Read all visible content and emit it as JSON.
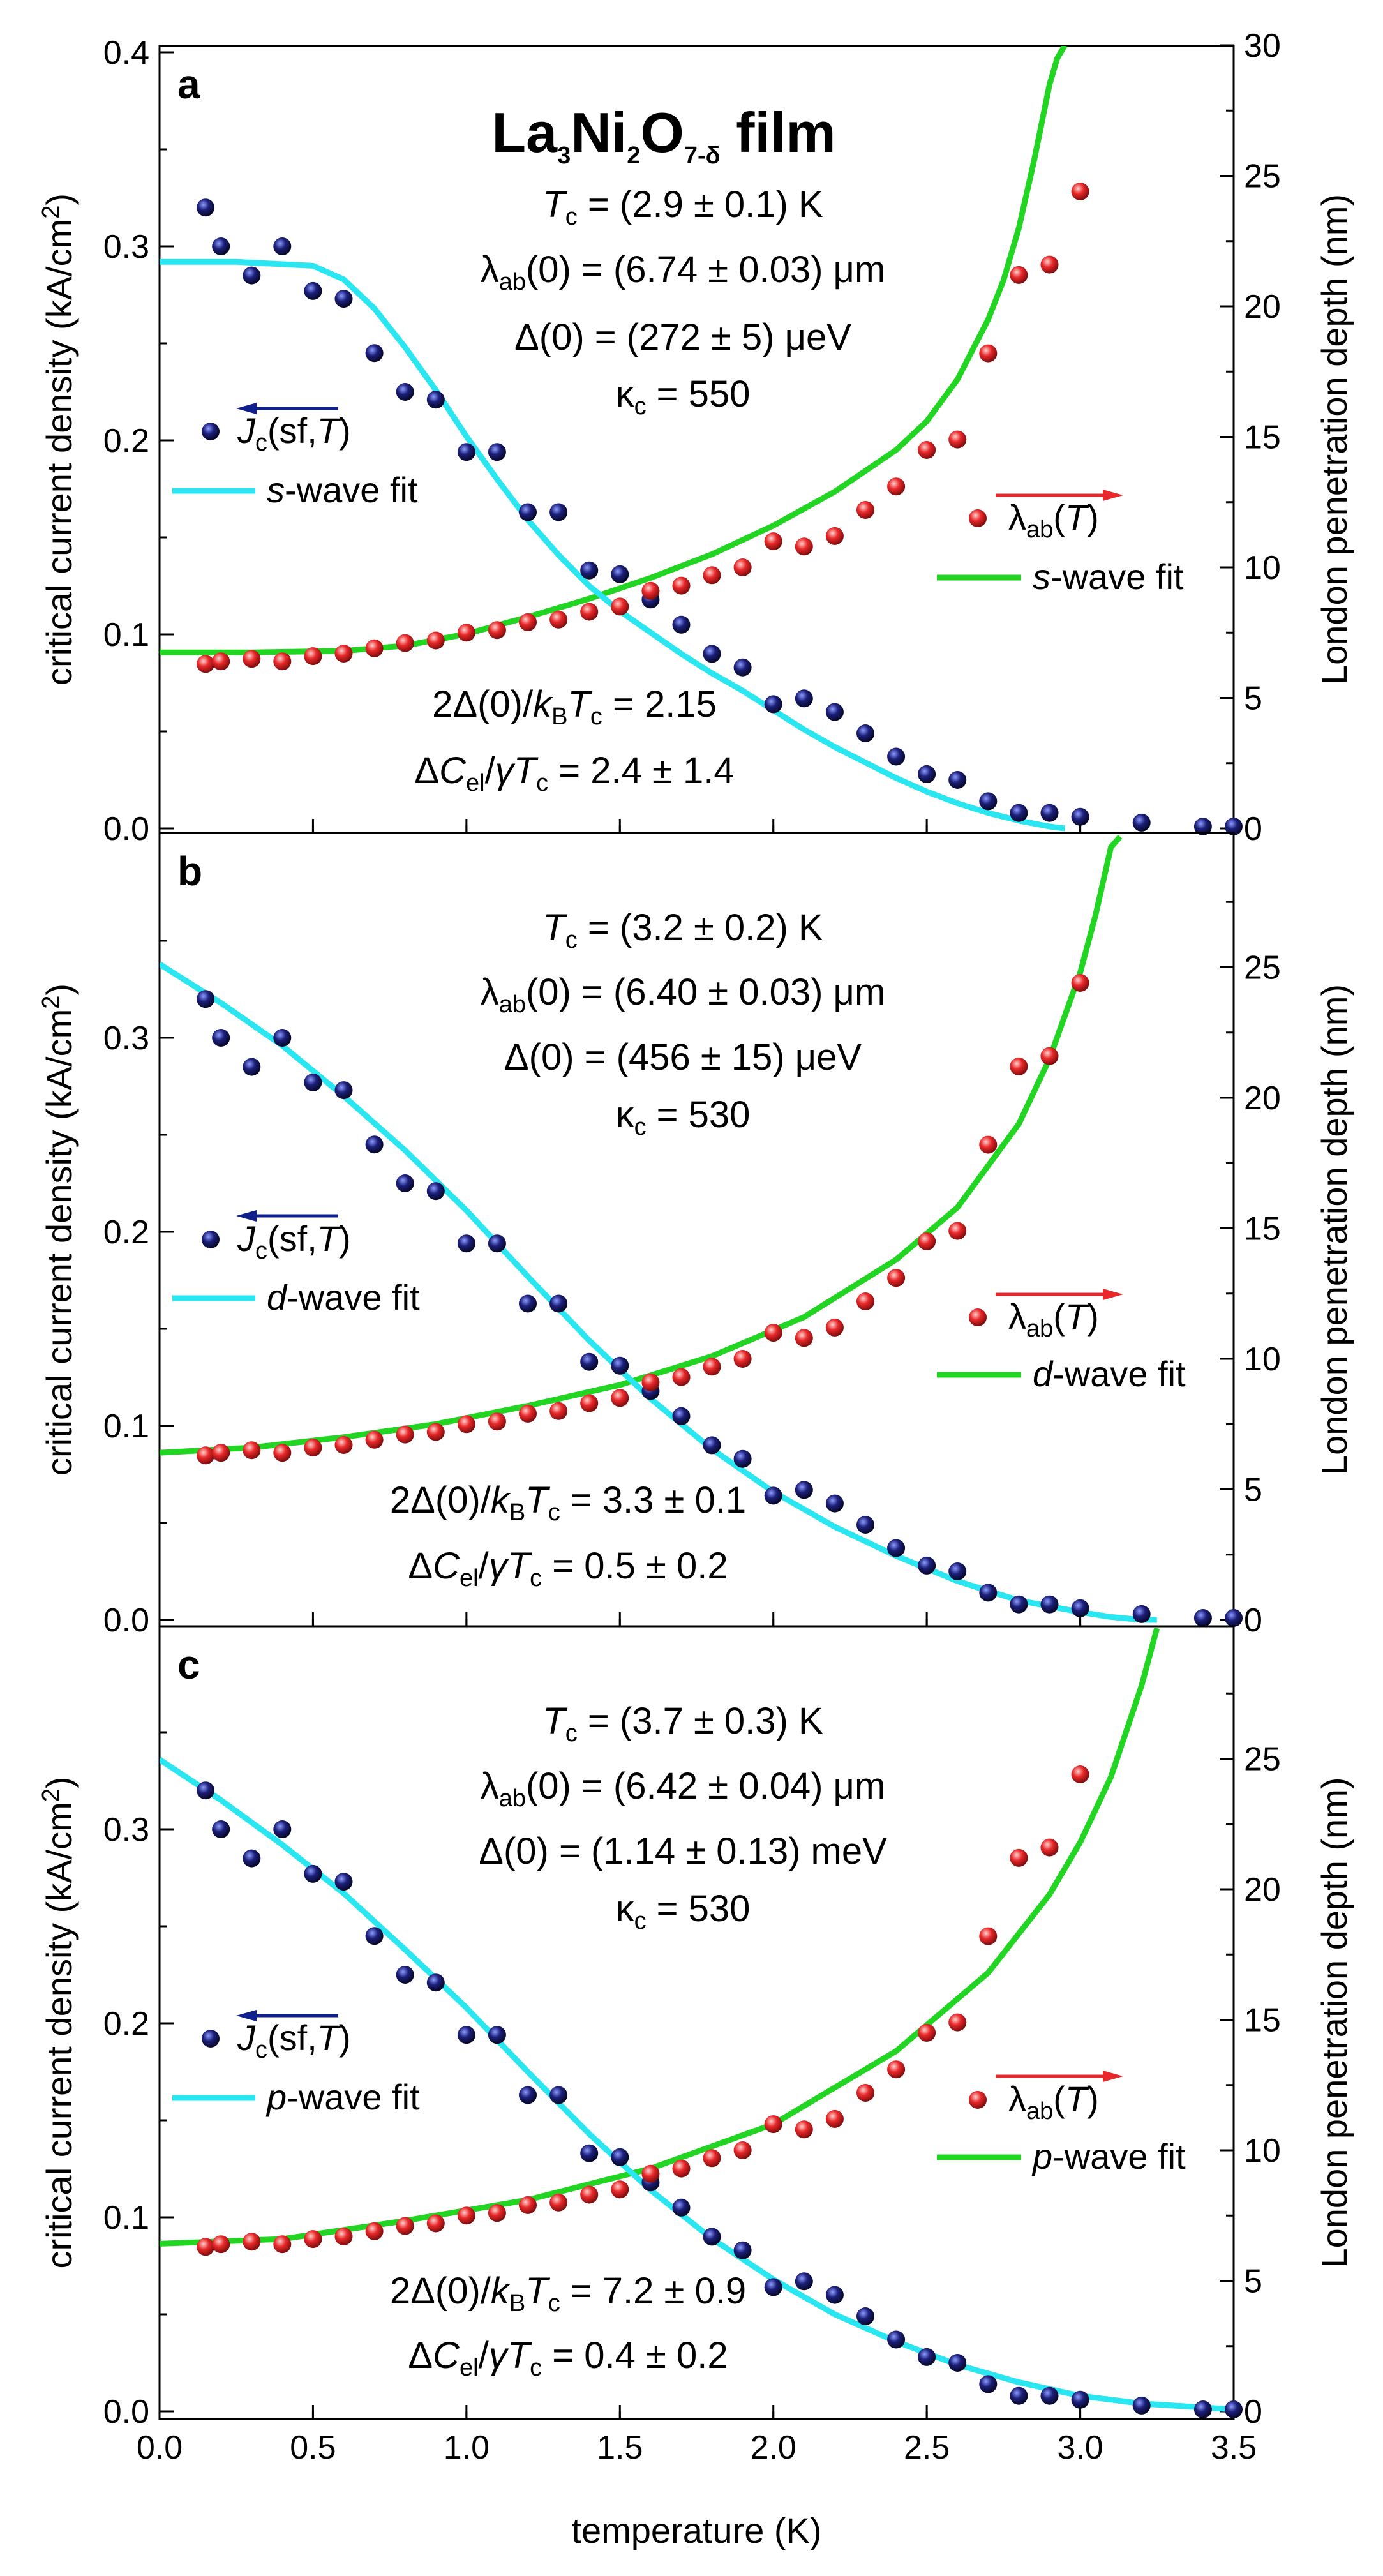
{
  "chart_data": {
    "type": "scatter",
    "title": "La3Ni2O7-δ film",
    "title_parts": {
      "main": "La",
      "s1": "3",
      "m2": "Ni",
      "s2": "2",
      "m3": "O",
      "s3": "7-δ",
      "tail": " film"
    },
    "xlabel": "temperature (K)",
    "xlim": [
      0.0,
      3.5
    ],
    "x_ticks": [
      "0.0",
      "0.5",
      "1.0",
      "1.5",
      "2.0",
      "2.5",
      "3.0",
      "3.5"
    ],
    "ylabel_left": "critical current density (kA/cm2)",
    "ylabel_left_parts": {
      "main": "critical current density (kA/cm",
      "sup": "2",
      "tail": ")"
    },
    "ylabel_right": "London penetration depth (nm)",
    "legend": {
      "jc_symbol": "J",
      "jc_sub": "c",
      "jc_tail": "(sf,",
      "t_symbol": "T",
      "close": ")",
      "lambda_symbol": "λ",
      "lambda_sub": "ab"
    },
    "measured": {
      "jc": {
        "name": "Jc(sf,T)",
        "color": "#1c1f7a",
        "x": [
          0.15,
          0.2,
          0.3,
          0.4,
          0.5,
          0.6,
          0.7,
          0.8,
          0.9,
          1.0,
          1.1,
          1.2,
          1.3,
          1.4,
          1.5,
          1.6,
          1.7,
          1.8,
          1.9,
          2.0,
          2.1,
          2.2,
          2.3,
          2.4,
          2.5,
          2.6,
          2.7,
          2.8,
          2.9,
          3.0,
          3.2,
          3.4,
          3.5
        ],
        "y": [
          0.32,
          0.3,
          0.285,
          0.3,
          0.277,
          0.273,
          0.245,
          0.225,
          0.221,
          0.194,
          0.194,
          0.163,
          0.163,
          0.133,
          0.131,
          0.118,
          0.105,
          0.09,
          0.083,
          0.064,
          0.067,
          0.06,
          0.049,
          0.037,
          0.028,
          0.025,
          0.014,
          0.008,
          0.008,
          0.006,
          0.003,
          0.001,
          0.001
        ]
      },
      "lambda": {
        "name": "λab(T)",
        "color": "#e8282a",
        "x": [
          0.15,
          0.2,
          0.3,
          0.4,
          0.5,
          0.6,
          0.7,
          0.8,
          0.9,
          1.0,
          1.1,
          1.2,
          1.3,
          1.4,
          1.5,
          1.6,
          1.7,
          1.8,
          1.9,
          2.0,
          2.1,
          2.2,
          2.3,
          2.4,
          2.5,
          2.6,
          2.7,
          2.8,
          2.9,
          3.0
        ],
        "y": [
          6.3,
          6.4,
          6.5,
          6.4,
          6.6,
          6.7,
          6.9,
          7.1,
          7.2,
          7.5,
          7.6,
          7.9,
          8.0,
          8.3,
          8.5,
          9.1,
          9.3,
          9.7,
          10.0,
          11.0,
          10.8,
          11.2,
          12.2,
          13.1,
          14.5,
          14.9,
          18.2,
          21.2,
          21.6,
          24.4
        ]
      }
    },
    "panels": [
      {
        "letter": "a",
        "ylim_left": [
          0.0,
          0.4
        ],
        "yticks_left": [
          "0.0",
          "0.1",
          "0.2",
          "0.3",
          "0.4"
        ],
        "ylim_right": [
          0,
          30
        ],
        "yticks_right": [
          "0",
          "5",
          "10",
          "15",
          "20",
          "25",
          "30"
        ],
        "wave": "s",
        "fit_legend_jc": "s-wave fit",
        "fit_legend_lambda": "s-wave fit",
        "fit_legend_jc_parts": {
          "letter": "s",
          "rest": "-wave fit"
        },
        "fit_legend_lambda_parts": {
          "letter": "s",
          "rest": "-wave fit"
        },
        "params": {
          "tc": "(2.9 ± 0.1) K",
          "lambda0": "(6.74 ± 0.03) μm",
          "delta0": "(272 ± 5) μeV",
          "kappa": "550",
          "ratio": "2.15",
          "dc": "2.4 ± 1.4"
        },
        "fit_jc": {
          "x": [
            0.0,
            0.25,
            0.5,
            0.6,
            0.7,
            0.8,
            0.9,
            1.0,
            1.1,
            1.2,
            1.3,
            1.4,
            1.5,
            1.6,
            1.7,
            1.8,
            1.9,
            2.0,
            2.1,
            2.2,
            2.3,
            2.4,
            2.5,
            2.6,
            2.7,
            2.8,
            2.9,
            2.95
          ],
          "y": [
            0.292,
            0.292,
            0.29,
            0.283,
            0.268,
            0.248,
            0.226,
            0.202,
            0.18,
            0.159,
            0.141,
            0.125,
            0.112,
            0.101,
            0.09,
            0.08,
            0.071,
            0.061,
            0.051,
            0.042,
            0.034,
            0.026,
            0.019,
            0.013,
            0.008,
            0.004,
            0.001,
            0.0
          ]
        },
        "fit_lambda": {
          "x": [
            0.0,
            0.3,
            0.6,
            0.8,
            1.0,
            1.2,
            1.4,
            1.6,
            1.8,
            2.0,
            2.2,
            2.4,
            2.5,
            2.6,
            2.7,
            2.75,
            2.8,
            2.85,
            2.9,
            2.925,
            2.95
          ],
          "y": [
            6.74,
            6.74,
            6.8,
            7.0,
            7.45,
            8.1,
            8.8,
            9.6,
            10.5,
            11.6,
            12.9,
            14.5,
            15.6,
            17.2,
            19.5,
            21.0,
            23.0,
            25.6,
            28.5,
            29.5,
            30.0
          ]
        }
      },
      {
        "letter": "b",
        "ylim_left": [
          0.0,
          0.4
        ],
        "yticks_left": [
          "0.0",
          "0.1",
          "0.2",
          "0.3"
        ],
        "ylim_right": [
          0,
          30
        ],
        "yticks_right": [
          "0",
          "5",
          "10",
          "15",
          "20",
          "25"
        ],
        "wave": "d",
        "fit_legend_jc": "d-wave fit",
        "fit_legend_lambda": "d-wave fit",
        "fit_legend_jc_parts": {
          "letter": "d",
          "rest": "-wave fit"
        },
        "fit_legend_lambda_parts": {
          "letter": "d",
          "rest": "-wave fit"
        },
        "params": {
          "tc": "(3.2 ± 0.2) K",
          "lambda0": "(6.40 ± 0.03) μm",
          "delta0": "(456 ± 15) μeV",
          "kappa": "530",
          "ratio": "3.3 ± 0.1",
          "dc": "0.5 ± 0.2"
        },
        "fit_jc": {
          "x": [
            0.0,
            0.2,
            0.4,
            0.6,
            0.8,
            1.0,
            1.2,
            1.4,
            1.6,
            1.8,
            2.0,
            2.2,
            2.4,
            2.6,
            2.8,
            3.0,
            3.1,
            3.2,
            3.25
          ],
          "y": [
            0.338,
            0.318,
            0.296,
            0.27,
            0.242,
            0.211,
            0.177,
            0.144,
            0.114,
            0.088,
            0.066,
            0.048,
            0.033,
            0.02,
            0.01,
            0.004,
            0.0015,
            0.0,
            0.0
          ]
        },
        "fit_lambda": {
          "x": [
            0.0,
            0.3,
            0.6,
            0.9,
            1.2,
            1.5,
            1.8,
            2.1,
            2.4,
            2.6,
            2.8,
            2.9,
            3.0,
            3.05,
            3.1,
            3.13
          ],
          "y": [
            6.4,
            6.6,
            7.0,
            7.5,
            8.2,
            9.0,
            10.1,
            11.6,
            13.8,
            15.8,
            19.0,
            21.5,
            24.8,
            27.0,
            29.6,
            30.0
          ]
        }
      },
      {
        "letter": "c",
        "ylim_left": [
          0.0,
          0.4
        ],
        "yticks_left": [
          "0.0",
          "0.1",
          "0.2",
          "0.3"
        ],
        "ylim_right": [
          0,
          30
        ],
        "yticks_right": [
          "0",
          "5",
          "10",
          "15",
          "20",
          "25"
        ],
        "wave": "p",
        "fit_legend_jc": "p-wave fit",
        "fit_legend_lambda": "p-wave fit",
        "fit_legend_jc_parts": {
          "letter": "p",
          "rest": "-wave fit"
        },
        "fit_legend_lambda_parts": {
          "letter": "p",
          "rest": "-wave fit"
        },
        "params": {
          "tc": "(3.7 ± 0.3) K",
          "lambda0": "(6.42 ± 0.04) μm",
          "delta0": "(1.14 ± 0.13) meV",
          "kappa": "530",
          "ratio": "7.2 ± 0.9",
          "dc": "0.4 ± 0.2"
        },
        "fit_jc": {
          "x": [
            0.0,
            0.2,
            0.4,
            0.6,
            0.8,
            1.0,
            1.2,
            1.4,
            1.6,
            1.8,
            2.0,
            2.2,
            2.4,
            2.6,
            2.8,
            3.0,
            3.2,
            3.4,
            3.5
          ],
          "y": [
            0.336,
            0.315,
            0.292,
            0.267,
            0.238,
            0.208,
            0.175,
            0.143,
            0.114,
            0.089,
            0.068,
            0.05,
            0.036,
            0.024,
            0.015,
            0.008,
            0.004,
            0.002,
            0.001
          ]
        },
        "fit_lambda": {
          "x": [
            0.0,
            0.4,
            0.8,
            1.2,
            1.6,
            2.0,
            2.4,
            2.7,
            2.9,
            3.0,
            3.1,
            3.2,
            3.25
          ],
          "y": [
            6.42,
            6.6,
            7.3,
            8.1,
            9.3,
            11.0,
            13.8,
            16.8,
            19.8,
            21.8,
            24.3,
            27.8,
            30.0
          ]
        }
      }
    ]
  },
  "colors": {
    "jc_points": "#1c1f7a",
    "lambda_points": "#e8282a",
    "jc_fit": "#29e6f0",
    "lambda_fit": "#22d522",
    "jc_arrow": "#0f1f8c",
    "lambda_arrow": "#e8282a"
  }
}
